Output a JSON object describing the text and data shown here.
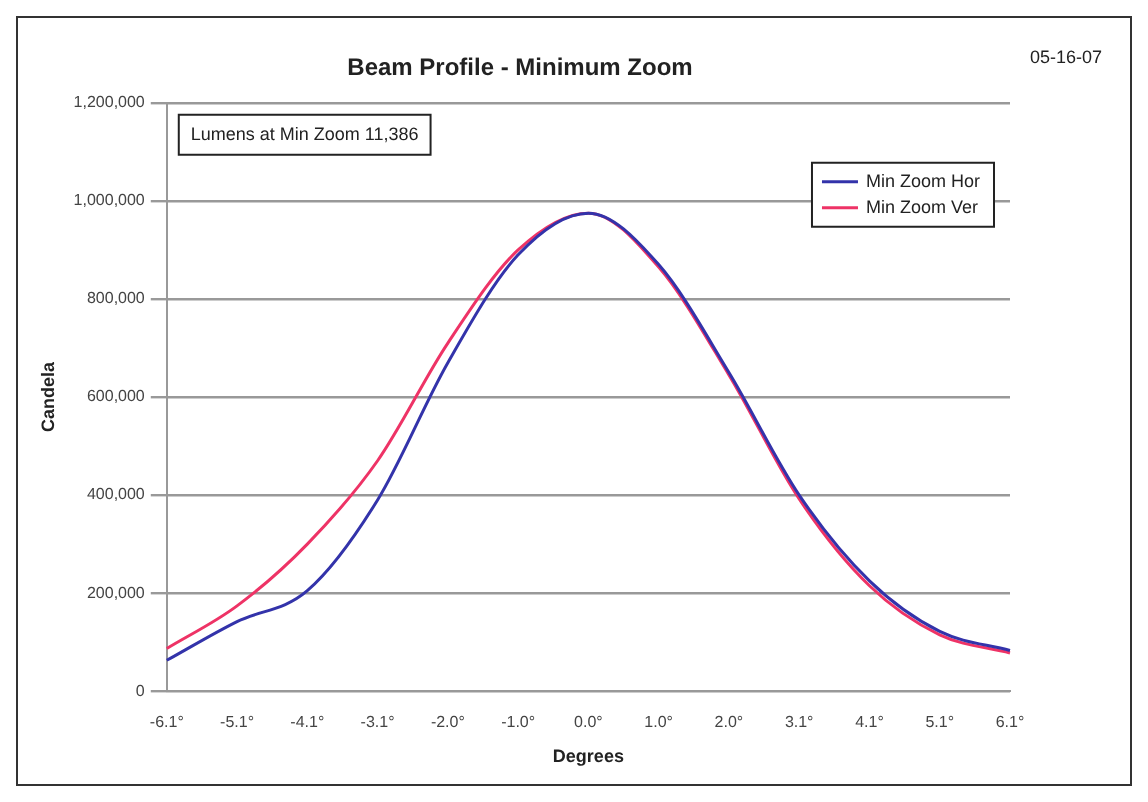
{
  "chart_data": {
    "type": "line",
    "title": "Beam Profile - Minimum Zoom",
    "xlabel": "Degrees",
    "ylabel": "Candela",
    "categories": [
      "-6.1°",
      "-5.1°",
      "-4.1°",
      "-3.1°",
      "-2.0°",
      "-1.0°",
      "0.0°",
      "1.0°",
      "2.0°",
      "3.1°",
      "4.1°",
      "5.1°",
      "6.1°"
    ],
    "series": [
      {
        "name": "Min Zoom Hor",
        "color": "#3333aa",
        "values": [
          63000,
          142000,
          205000,
          390000,
          670000,
          890000,
          975000,
          870000,
          650000,
          400000,
          225000,
          122000,
          83000
        ]
      },
      {
        "name": "Min Zoom Ver",
        "color": "#ee3366",
        "values": [
          87000,
          174000,
          300000,
          470000,
          710000,
          900000,
          975000,
          865000,
          645000,
          392000,
          215000,
          115000,
          78000
        ]
      }
    ],
    "ylim": [
      0,
      1200000
    ],
    "yticks": [
      {
        "value": 0,
        "label": "0"
      },
      {
        "value": 200000,
        "label": "200,000"
      },
      {
        "value": 400000,
        "label": "400,000"
      },
      {
        "value": 600000,
        "label": "600,000"
      },
      {
        "value": 800000,
        "label": "800,000"
      },
      {
        "value": 1000000,
        "label": "1,000,000"
      },
      {
        "value": 1200000,
        "label": "1,200,000"
      }
    ],
    "grid": "y",
    "legend": "top right",
    "marker": "none",
    "line_style": "solid",
    "annotations": [
      "Lumens at Min Zoom 11,386",
      "05-16-07"
    ]
  }
}
